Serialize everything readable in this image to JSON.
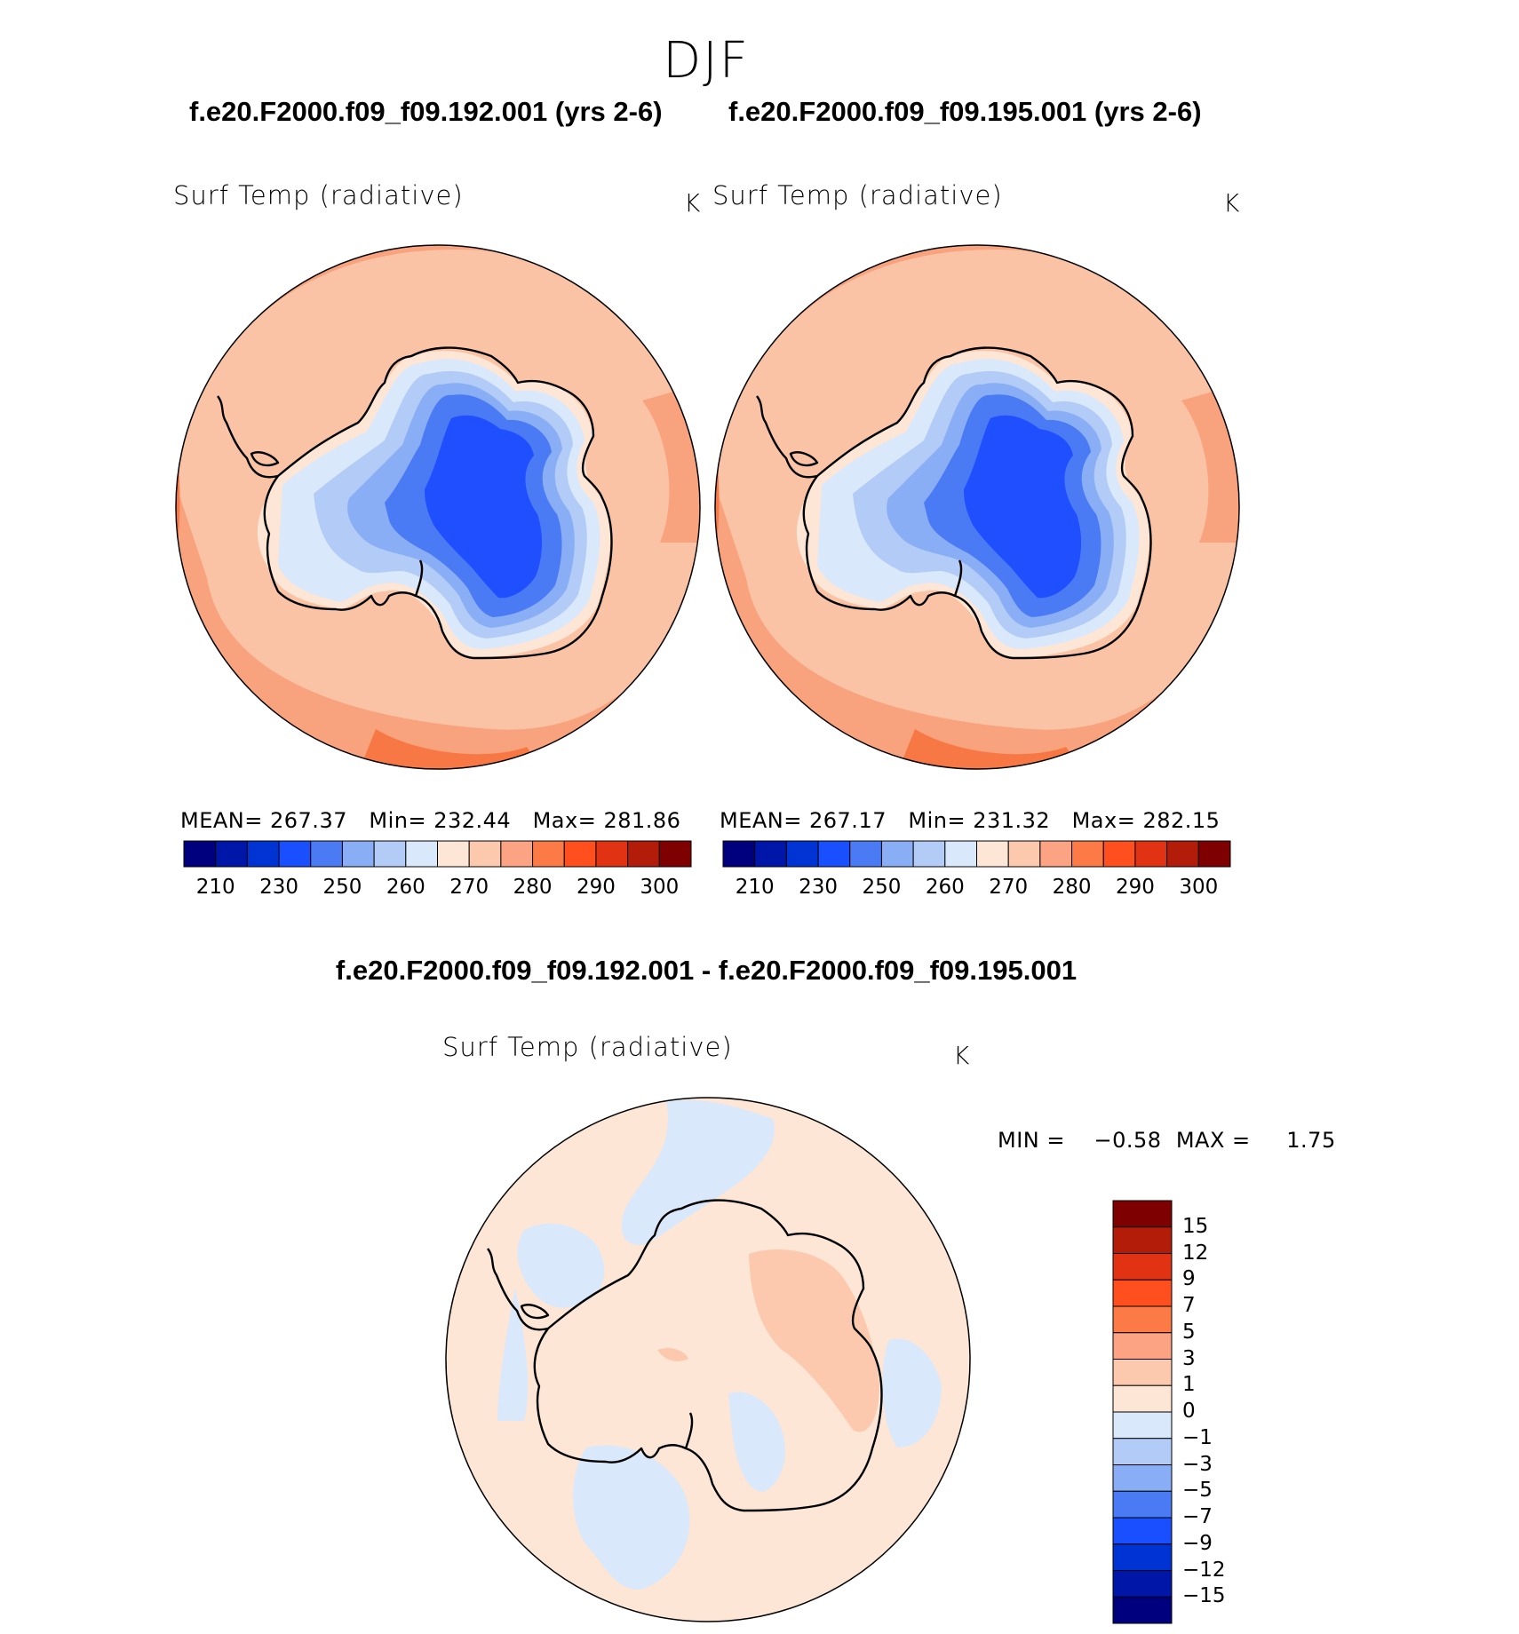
{
  "season": "DJF",
  "colors": {
    "deep_blue": "#1f4fff",
    "mid_blue": "#3a6af0",
    "light_blue": "#8ab0f5",
    "pale_blue": "#d6e8fb",
    "pale_orange": "#fce4d2",
    "light_orange": "#fbc3a5",
    "orange": "#f9a27e",
    "dark_orange": "#f87845"
  },
  "panels": [
    {
      "case": "f.e20.F2000.f09_f09.192.001 (yrs 2-6)",
      "variable": "Surf Temp (radiative)",
      "unit": "K",
      "mean_label": "MEAN=",
      "mean": "267.37",
      "min_label": "Min=",
      "min": "232.44",
      "max_label": "Max=",
      "max": "281.86"
    },
    {
      "case": "f.e20.F2000.f09_f09.195.001 (yrs 2-6)",
      "variable": "Surf Temp (radiative)",
      "unit": "K",
      "mean_label": "MEAN=",
      "mean": "267.17",
      "min_label": "Min=",
      "min": "231.32",
      "max_label": "Max=",
      "max": "282.15"
    }
  ],
  "colorbar_top": {
    "ticks": [
      "210",
      "230",
      "250",
      "260",
      "270",
      "280",
      "290",
      "300"
    ],
    "colors": [
      "#00007f",
      "#0016a8",
      "#0033d4",
      "#1a4fff",
      "#4a7bf5",
      "#8aaef5",
      "#b2cbf7",
      "#d9e8fb",
      "#fde6d5",
      "#fcc9ae",
      "#fba383",
      "#fb7a45",
      "#ff4f1f",
      "#e23214",
      "#b41c0a",
      "#7f0000"
    ]
  },
  "difference": {
    "title": "f.e20.F2000.f09_f09.192.001 - f.e20.F2000.f09_f09.195.001",
    "variable": "Surf Temp (radiative)",
    "unit": "K",
    "min_label": "MIN =",
    "min": "−0.58",
    "max_label": "MAX =",
    "max": "1.75"
  },
  "colorbar_diff": {
    "ticks": [
      "15",
      "12",
      "9",
      "7",
      "5",
      "3",
      "1",
      "0",
      "−1",
      "−3",
      "−5",
      "−7",
      "−9",
      "−12",
      "−15"
    ],
    "colors": [
      "#7f0000",
      "#b41c0a",
      "#e23214",
      "#ff4f1f",
      "#fb7a45",
      "#fba383",
      "#fcc9ae",
      "#fde6d5",
      "#d9e8fb",
      "#b2cbf7",
      "#8aaef5",
      "#4a7bf5",
      "#1a4fff",
      "#0033d4",
      "#0016a8",
      "#00007f"
    ]
  }
}
